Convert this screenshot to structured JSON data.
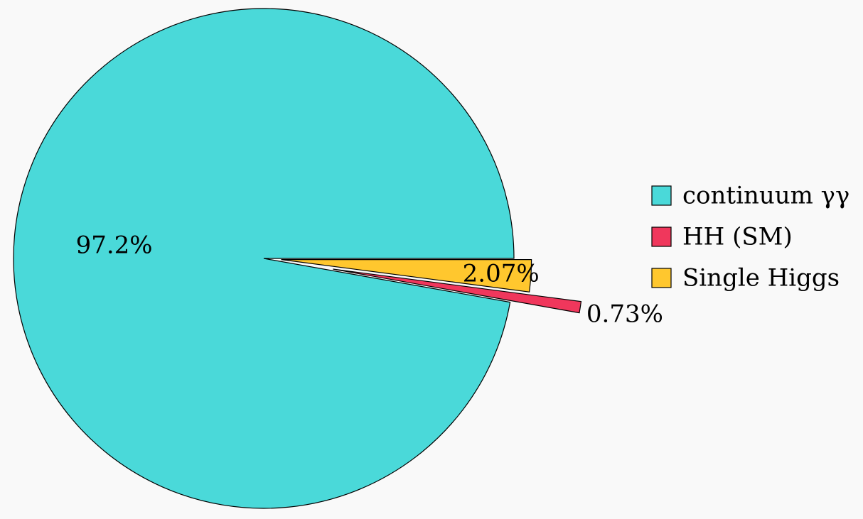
{
  "chart_data": {
    "type": "pie",
    "title": "",
    "slices": [
      {
        "name": "continuum γγ",
        "value": 97.2,
        "label": "97.2%",
        "color": "#4ad9d9"
      },
      {
        "name": "HH (SM)",
        "value": 0.73,
        "label": "0.73%",
        "color": "#f0375c"
      },
      {
        "name": "Single Higgs",
        "value": 2.07,
        "label": "2.07%",
        "color": "#ffc72e"
      }
    ],
    "legend_placement": "right",
    "exploded": [
      "HH (SM)",
      "Single Higgs"
    ]
  }
}
